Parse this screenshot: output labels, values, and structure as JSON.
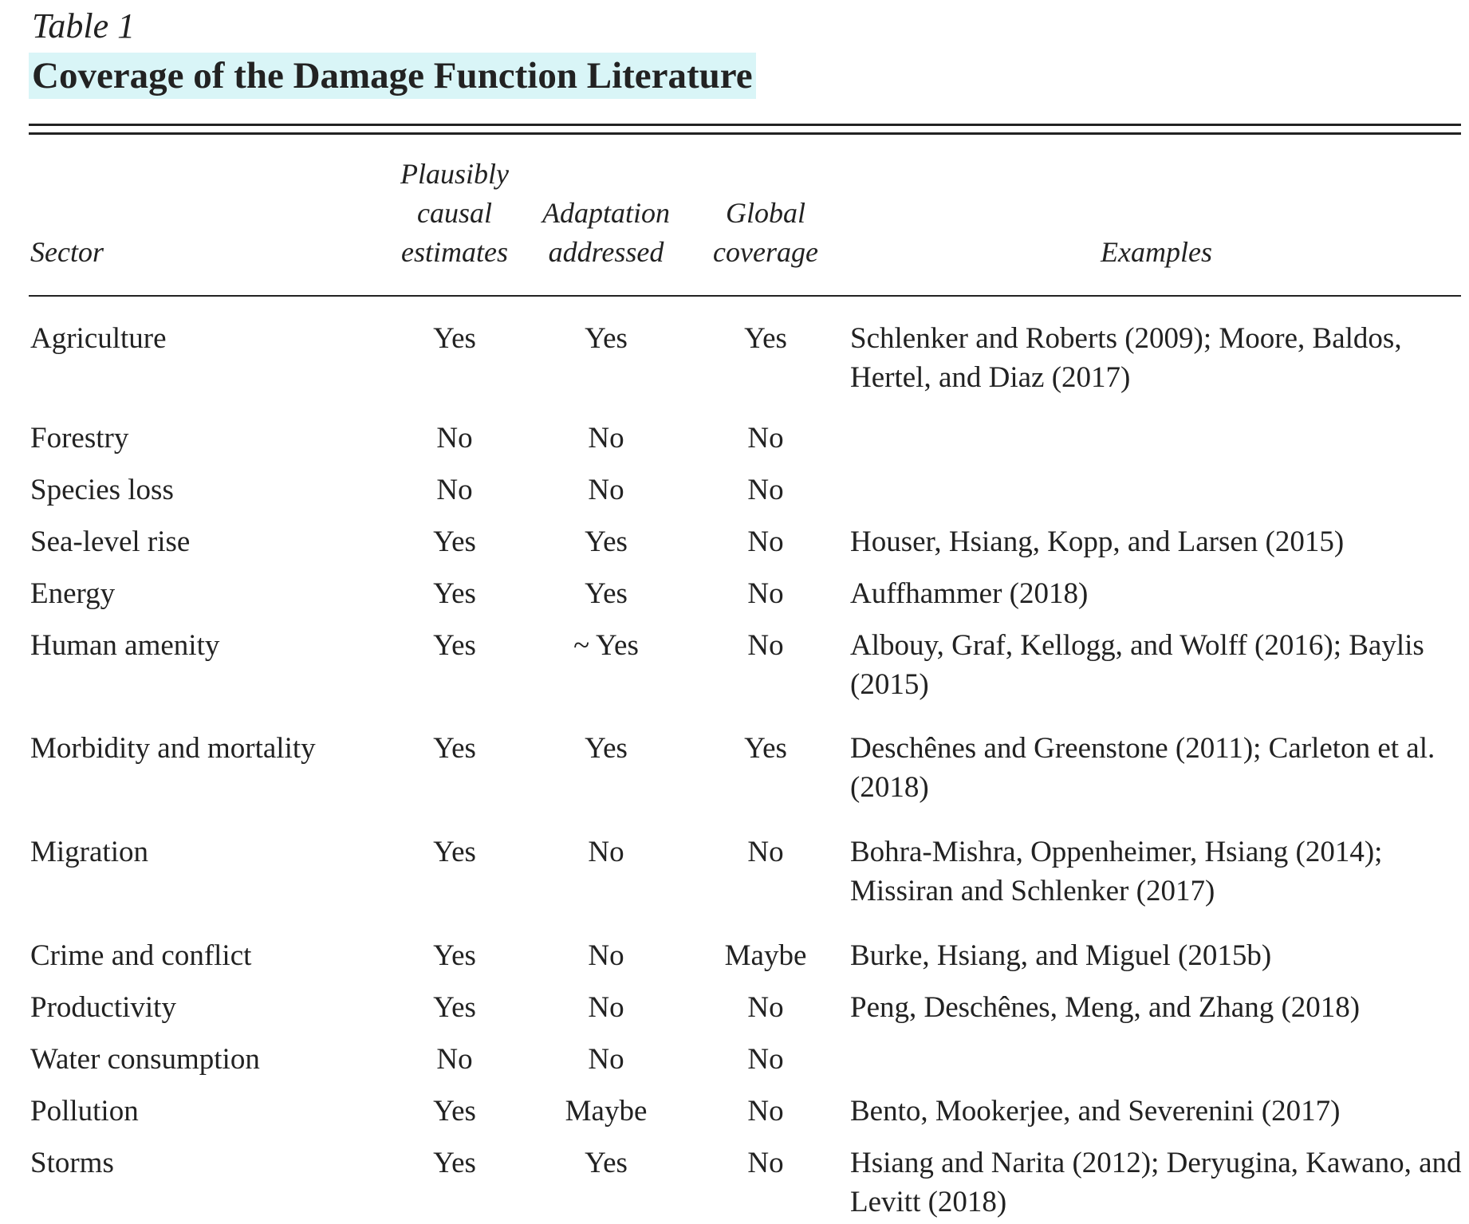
{
  "table": {
    "label": "Table 1",
    "title": "Coverage of the Damage Function Literature",
    "headers": {
      "sector": "Sector",
      "causal": [
        "Plausibly",
        "causal",
        "estimates"
      ],
      "adaptation": [
        "Adaptation",
        "addressed"
      ],
      "global": [
        "Global",
        "coverage"
      ],
      "examples": "Examples"
    },
    "rows": [
      {
        "sector": "Agriculture",
        "causal": "Yes",
        "adaptation": "Yes",
        "global": "Yes",
        "examples": "Schlenker and Roberts (2009); Moore, Baldos, Hertel, and Diaz (2017)"
      },
      {
        "sector": "Forestry",
        "causal": "No",
        "adaptation": "No",
        "global": "No",
        "examples": ""
      },
      {
        "sector": "Species loss",
        "causal": "No",
        "adaptation": "No",
        "global": "No",
        "examples": ""
      },
      {
        "sector": "Sea-level rise",
        "causal": "Yes",
        "adaptation": "Yes",
        "global": "No",
        "examples": "Houser, Hsiang, Kopp, and Larsen (2015)"
      },
      {
        "sector": "Energy",
        "causal": "Yes",
        "adaptation": "Yes",
        "global": "No",
        "examples": "Auffhammer (2018)"
      },
      {
        "sector": "Human amenity",
        "causal": "Yes",
        "adaptation": "~ Yes",
        "global": "No",
        "examples": "Albouy, Graf, Kellogg, and Wolff (2016); Baylis (2015)"
      },
      {
        "sector": "Morbidity and mortality",
        "causal": "Yes",
        "adaptation": "Yes",
        "global": "Yes",
        "examples": "Deschênes and Greenstone (2011); Carleton et al. (2018)"
      },
      {
        "sector": "Migration",
        "causal": "Yes",
        "adaptation": "No",
        "global": "No",
        "examples": "Bohra-Mishra, Oppenheimer, Hsiang (2014); Missiran and Schlenker (2017)"
      },
      {
        "sector": "Crime and conflict",
        "causal": "Yes",
        "adaptation": "No",
        "global": "Maybe",
        "examples": "Burke, Hsiang, and Miguel (2015b)"
      },
      {
        "sector": "Productivity",
        "causal": "Yes",
        "adaptation": "No",
        "global": "No",
        "examples": "Peng, Deschênes, Meng, and Zhang (2018)"
      },
      {
        "sector": "Water consumption",
        "causal": "No",
        "adaptation": "No",
        "global": "No",
        "examples": ""
      },
      {
        "sector": "Pollution",
        "causal": "Yes",
        "adaptation": "Maybe",
        "global": "No",
        "examples": "Bento, Mookerjee, and Severenini (2017)"
      },
      {
        "sector": "Storms",
        "causal": "Yes",
        "adaptation": "Yes",
        "global": "No",
        "examples": "Hsiang and Narita (2012); Deryugina, Kawano, and Levitt (2018)"
      }
    ]
  },
  "colors": {
    "title_highlight": "#d9f5f7",
    "text": "#222222"
  }
}
